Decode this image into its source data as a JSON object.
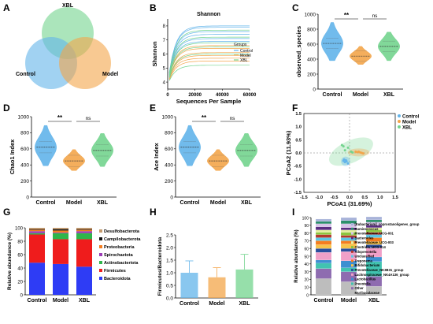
{
  "colors": {
    "control": "#62b4ea",
    "model": "#f3a54a",
    "xbl": "#73d48e",
    "signif": "#000000"
  },
  "chart_data": [
    {
      "panel": "A",
      "type": "venn",
      "sets": [
        "Control",
        "Model",
        "XBL"
      ]
    },
    {
      "panel": "B",
      "type": "line",
      "title": "Shannon",
      "xlabel": "Sequences Per Sample",
      "ylabel": "Shannon",
      "xlim": [
        0,
        60000
      ],
      "ylim": [
        3.5,
        8.5
      ],
      "xticks": [
        "0",
        "20000",
        "40000",
        "60000"
      ],
      "yticks": [
        "4",
        "5",
        "6",
        "7",
        "8"
      ],
      "legend_title": "Groups",
      "legend": [
        "Control",
        "Model",
        "XBL"
      ],
      "series": [
        {
          "name": "Control",
          "plateaus": [
            8.0,
            7.9,
            7.6,
            7.4,
            7.1,
            6.9
          ]
        },
        {
          "name": "Model",
          "plateaus": [
            6.6,
            6.4,
            6.1,
            5.9,
            5.7,
            5.5
          ]
        },
        {
          "name": "XBL",
          "plateaus": [
            7.7,
            7.2,
            6.8,
            6.5,
            6.0,
            5.2
          ]
        }
      ]
    },
    {
      "panel": "C",
      "type": "violin",
      "ylabel": "observed_species",
      "ylim": [
        0,
        1000
      ],
      "yticks": [
        "0",
        "200",
        "400",
        "600",
        "800",
        "1000"
      ],
      "categories": [
        "Control",
        "Model",
        "XBL"
      ],
      "medians": [
        610,
        440,
        570
      ],
      "ranges": [
        [
          380,
          890
        ],
        [
          330,
          570
        ],
        [
          380,
          760
        ]
      ],
      "comparisons": [
        {
          "pair": [
            "Control",
            "Model"
          ],
          "label": "**"
        },
        {
          "pair": [
            "Model",
            "XBL"
          ],
          "label": "ns"
        }
      ]
    },
    {
      "panel": "D",
      "type": "violin",
      "ylabel": "Chao1 Index",
      "ylim": [
        0,
        1000
      ],
      "yticks": [
        "0",
        "200",
        "400",
        "600",
        "800",
        "1000"
      ],
      "categories": [
        "Control",
        "Model",
        "XBL"
      ],
      "medians": [
        620,
        450,
        580
      ],
      "ranges": [
        [
          390,
          890
        ],
        [
          330,
          590
        ],
        [
          380,
          790
        ]
      ],
      "comparisons": [
        {
          "pair": [
            "Control",
            "Model"
          ],
          "label": "**"
        },
        {
          "pair": [
            "Model",
            "XBL"
          ],
          "label": "ns"
        }
      ]
    },
    {
      "panel": "E",
      "type": "violin",
      "ylabel": "Ace Index",
      "ylim": [
        0,
        1000
      ],
      "yticks": [
        "0",
        "200",
        "400",
        "600",
        "800",
        "1000"
      ],
      "categories": [
        "Control",
        "Model",
        "XBL"
      ],
      "medians": [
        620,
        450,
        580
      ],
      "ranges": [
        [
          390,
          890
        ],
        [
          330,
          590
        ],
        [
          380,
          790
        ]
      ],
      "comparisons": [
        {
          "pair": [
            "Control",
            "Model"
          ],
          "label": "**"
        },
        {
          "pair": [
            "Model",
            "XBL"
          ],
          "label": "ns"
        }
      ]
    },
    {
      "panel": "F",
      "type": "scatter",
      "xlabel": "PCoA1 (31.69%)",
      "ylabel": "PCoA2 (11.93%)",
      "xlim": [
        -1.5,
        1.5
      ],
      "ylim": [
        -1.5,
        1.5
      ],
      "xticks": [
        "-1.5",
        "-1.0",
        "-0.5",
        "0.0",
        "0.5",
        "1.0",
        "1.5"
      ],
      "yticks": [
        "-1.5",
        "-1.0",
        "-0.5",
        "0.0",
        "0.5",
        "1.0",
        "1.5"
      ],
      "legend": [
        "Control",
        "Model",
        "XBL"
      ],
      "series": [
        {
          "name": "Control",
          "points": [
            [
              -0.2,
              -0.3
            ],
            [
              -0.15,
              -0.35
            ],
            [
              -0.1,
              -0.32
            ],
            [
              -0.18,
              -0.25
            ],
            [
              -0.05,
              -0.4
            ],
            [
              -0.12,
              -0.28
            ]
          ]
        },
        {
          "name": "Model",
          "points": [
            [
              0.2,
              0.05
            ],
            [
              0.35,
              0.02
            ],
            [
              0.4,
              0.0
            ],
            [
              0.3,
              0.05
            ],
            [
              0.45,
              -0.02
            ],
            [
              0.25,
              0.03
            ]
          ]
        },
        {
          "name": "XBL",
          "points": [
            [
              -0.25,
              0.3
            ],
            [
              -0.2,
              0.25
            ],
            [
              -0.15,
              0.1
            ],
            [
              0.05,
              0.05
            ],
            [
              0.1,
              0.02
            ],
            [
              -0.05,
              0.2
            ]
          ]
        }
      ]
    },
    {
      "panel": "G",
      "type": "bar",
      "stacked": true,
      "ylabel": "Relative abundance (%)",
      "ylim": [
        0,
        100
      ],
      "yticks": [
        "0",
        "20",
        "40",
        "60",
        "80",
        "100"
      ],
      "categories": [
        "Control",
        "Model",
        "XBL"
      ],
      "series": [
        {
          "name": "Bacteroidota",
          "values": [
            48,
            46,
            42
          ],
          "color": "#2e3cf5"
        },
        {
          "name": "Firmicutes",
          "values": [
            42,
            37,
            41
          ],
          "color": "#ef1c1c"
        },
        {
          "name": "Actinobacteriota",
          "values": [
            2,
            9,
            9
          ],
          "color": "#2fb54a"
        },
        {
          "name": "Spirochaetota",
          "values": [
            3,
            1,
            3
          ],
          "color": "#9b3bb5"
        },
        {
          "name": "Proteobacteria",
          "values": [
            2,
            3,
            2
          ],
          "color": "#f47d1f"
        },
        {
          "name": "Campilobacterota",
          "values": [
            1,
            2,
            1
          ],
          "color": "#111111"
        },
        {
          "name": "Desulfobacterota",
          "values": [
            2,
            2,
            2
          ],
          "color": "#c49a6c"
        }
      ]
    },
    {
      "panel": "H",
      "type": "bar",
      "ylabel": "Firmicutes/Bacteroidota",
      "ylim": [
        0,
        2.5
      ],
      "yticks": [
        "0.0",
        "0.5",
        "1.0",
        "1.5",
        "2.0",
        "2.5"
      ],
      "categories": [
        "Control",
        "Model",
        "XBL"
      ],
      "values": [
        1.0,
        0.82,
        1.13
      ],
      "errors": [
        0.47,
        0.38,
        0.6
      ]
    },
    {
      "panel": "I",
      "type": "bar",
      "stacked": true,
      "ylabel": "Relative abundance (%)",
      "ylim": [
        0,
        100
      ],
      "yticks": [
        "0",
        "10",
        "20",
        "30",
        "40",
        "50",
        "60",
        "70",
        "80",
        "90",
        "100"
      ],
      "categories": [
        "Control",
        "Model",
        "XBL"
      ],
      "series": [
        {
          "name": "Muribaculaceae",
          "values": [
            21,
            17,
            11
          ],
          "color": "#bdbdbd"
        },
        {
          "name": "Other",
          "values": [
            13,
            13,
            13
          ],
          "color": "#8e6cb0"
        },
        {
          "name": "Prevotella",
          "values": [
            7,
            5,
            19
          ],
          "color": "#41c3b0"
        },
        {
          "name": "Lactobacillus",
          "values": [
            4,
            9,
            6
          ],
          "color": "#3d8fd1"
        },
        {
          "name": "Lachnospiraceae_NK4A136_group",
          "values": [
            10,
            12,
            12
          ],
          "color": "#f0a0c8"
        },
        {
          "name": "Prevotellaceae_NK3B31_group",
          "values": [
            5,
            4,
            4
          ],
          "color": "#2a4f9e"
        },
        {
          "name": "Bifidobacterium",
          "values": [
            5,
            6,
            4
          ],
          "color": "#f7c24a"
        },
        {
          "name": "Treponema",
          "values": [
            5,
            4,
            5
          ],
          "color": "#f47d1f"
        },
        {
          "name": "Unclassified",
          "values": [
            4,
            4,
            4
          ],
          "color": "#5cc7e6"
        },
        {
          "name": "Alloprevotella",
          "values": [
            4,
            3,
            3
          ],
          "color": "#b5382c"
        },
        {
          "name": "Clostridia_UCG-014",
          "values": [
            3,
            4,
            3
          ],
          "color": "#8cc63f"
        },
        {
          "name": "Prevotellaceae_UCG-003",
          "values": [
            3,
            3,
            3
          ],
          "color": "#e6f0a0"
        },
        {
          "name": "Bacteroides",
          "values": [
            4,
            3,
            3
          ],
          "color": "#5a2d82"
        },
        {
          "name": "Prevotellaceae_UCG-001",
          "values": [
            4,
            5,
            4
          ],
          "color": "#d7c4e8"
        },
        {
          "name": "Ruminococcus",
          "values": [
            3,
            4,
            3
          ],
          "color": "#2c8f6b"
        },
        {
          "name": "[Eubacterium]_coprostanoligenes_group",
          "values": [
            3,
            4,
            4
          ],
          "color": "#a8b3d9"
        }
      ]
    }
  ]
}
